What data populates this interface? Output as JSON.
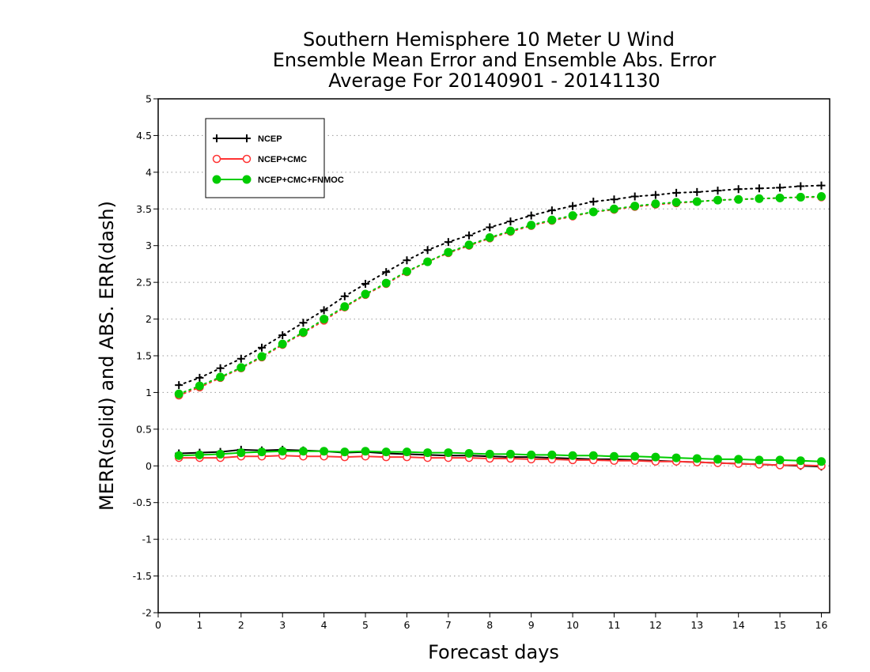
{
  "chart_data": {
    "type": "line",
    "title": [
      "Southern Hemisphere 10 Meter U Wind",
      "Ensemble Mean Error and Ensemble Abs. Error",
      "Average For 20140901 - 20141130"
    ],
    "xlabel": "Forecast days",
    "ylabel": "MERR(solid) and ABS. ERR(dash)",
    "xlim": [
      0,
      16.2
    ],
    "ylim": [
      -2,
      5
    ],
    "x_ticks": [
      0,
      1,
      2,
      3,
      4,
      5,
      6,
      7,
      8,
      9,
      10,
      11,
      12,
      13,
      14,
      15,
      16
    ],
    "y_ticks": [
      -2,
      -1.5,
      -1,
      -0.5,
      0,
      0.5,
      1,
      1.5,
      2,
      2.5,
      3,
      3.5,
      4,
      4.5,
      5
    ],
    "grid": "horizontal dotted",
    "legend_position": "top-left",
    "x": [
      0.5,
      1,
      1.5,
      2,
      2.5,
      3,
      3.5,
      4,
      4.5,
      5,
      5.5,
      6,
      6.5,
      7,
      7.5,
      8,
      8.5,
      9,
      9.5,
      10,
      10.5,
      11,
      11.5,
      12,
      12.5,
      13,
      13.5,
      14,
      14.5,
      15,
      15.5,
      16
    ],
    "series": [
      {
        "name": "NCEP",
        "color": "#000000",
        "marker": "plus",
        "abs_err": [
          1.1,
          1.2,
          1.33,
          1.46,
          1.61,
          1.78,
          1.95,
          2.12,
          2.31,
          2.48,
          2.64,
          2.8,
          2.94,
          3.05,
          3.14,
          3.25,
          3.33,
          3.41,
          3.48,
          3.54,
          3.6,
          3.63,
          3.67,
          3.69,
          3.72,
          3.73,
          3.75,
          3.77,
          3.78,
          3.79,
          3.81,
          3.82
        ],
        "mean_err": [
          0.17,
          0.18,
          0.19,
          0.22,
          0.21,
          0.22,
          0.21,
          0.2,
          0.18,
          0.19,
          0.17,
          0.16,
          0.15,
          0.14,
          0.14,
          0.13,
          0.12,
          0.12,
          0.11,
          0.1,
          0.09,
          0.09,
          0.08,
          0.07,
          0.06,
          0.05,
          0.04,
          0.03,
          0.02,
          0.01,
          0.0,
          -0.01
        ]
      },
      {
        "name": "NCEP+CMC",
        "color": "#ff3333",
        "marker": "open-circle",
        "abs_err": [
          0.96,
          1.07,
          1.2,
          1.33,
          1.48,
          1.65,
          1.81,
          1.98,
          2.16,
          2.33,
          2.48,
          2.64,
          2.78,
          2.9,
          3.0,
          3.1,
          3.19,
          3.27,
          3.34,
          3.4,
          3.46,
          3.49,
          3.53,
          3.56,
          3.58,
          3.6,
          3.62,
          3.63,
          3.64,
          3.65,
          3.66,
          3.66
        ],
        "mean_err": [
          0.11,
          0.11,
          0.11,
          0.13,
          0.13,
          0.14,
          0.13,
          0.13,
          0.12,
          0.13,
          0.12,
          0.12,
          0.11,
          0.11,
          0.11,
          0.1,
          0.1,
          0.09,
          0.09,
          0.08,
          0.08,
          0.07,
          0.07,
          0.06,
          0.06,
          0.05,
          0.04,
          0.03,
          0.02,
          0.01,
          0.01,
          0.0
        ]
      },
      {
        "name": "NCEP+CMC+FNMOC",
        "color": "#00cc00",
        "marker": "filled-circle",
        "abs_err": [
          0.98,
          1.09,
          1.21,
          1.34,
          1.49,
          1.66,
          1.82,
          2.0,
          2.17,
          2.34,
          2.49,
          2.65,
          2.78,
          2.91,
          3.01,
          3.11,
          3.2,
          3.28,
          3.35,
          3.41,
          3.46,
          3.5,
          3.54,
          3.57,
          3.59,
          3.6,
          3.62,
          3.63,
          3.64,
          3.65,
          3.66,
          3.67
        ],
        "mean_err": [
          0.14,
          0.15,
          0.16,
          0.18,
          0.19,
          0.2,
          0.2,
          0.2,
          0.19,
          0.2,
          0.19,
          0.19,
          0.18,
          0.18,
          0.17,
          0.16,
          0.16,
          0.15,
          0.15,
          0.14,
          0.14,
          0.13,
          0.13,
          0.12,
          0.11,
          0.1,
          0.09,
          0.09,
          0.08,
          0.08,
          0.07,
          0.06
        ]
      }
    ]
  }
}
